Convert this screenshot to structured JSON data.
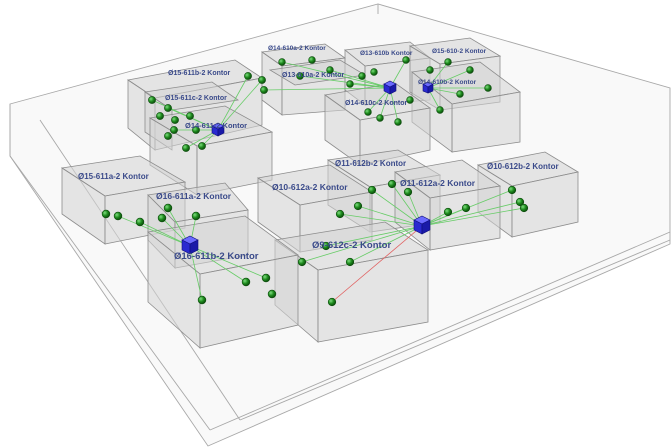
{
  "colors": {
    "room_fill": "#d3d3d3",
    "room_edge": "#8c8c8c",
    "floor_edge": "#a8a8a8",
    "label": "#3a4a8a",
    "sensor_node": "#1e8c1e",
    "gateway": "#2222cc",
    "link_good": "#66cc66",
    "link_weak": "#e06060"
  },
  "icons": {
    "sensor": "green-sphere-icon",
    "gateway": "blue-cube-icon"
  },
  "rooms": [
    {
      "id": "r1",
      "label": "Ø15-611b-2 Kontor"
    },
    {
      "id": "r2",
      "label": "Ø14-610a-2 Kontor"
    },
    {
      "id": "r3",
      "label": "Ø13-610b Kontor"
    },
    {
      "id": "r4",
      "label": "Ø15-610-2 Kontor"
    },
    {
      "id": "r5",
      "label": "Ø15-611c-2 Kontor"
    },
    {
      "id": "r6",
      "label": "Ø13-610a-2 Kontor"
    },
    {
      "id": "r7",
      "label": "Ø14-610b-2 Kontor"
    },
    {
      "id": "r8",
      "label": "Ø14-610c-2 Kontor"
    },
    {
      "id": "r9",
      "label": "Ø14-611-2 Kontor"
    },
    {
      "id": "r10",
      "label": "Ø11-612b-2 Kontor"
    },
    {
      "id": "r11",
      "label": "Ø10-612b-2 Kontor"
    },
    {
      "id": "r12",
      "label": "Ø15-611a-2 Kontor"
    },
    {
      "id": "r13",
      "label": "Ø10-612a-2 Kontor"
    },
    {
      "id": "r14",
      "label": "Ø11-612a-2 Kontor"
    },
    {
      "id": "r15",
      "label": "Ø16-611a-2 Kontor"
    },
    {
      "id": "r16",
      "label": "Ø9-612c-2 Kontor"
    },
    {
      "id": "r17",
      "label": "Ø16-611b-2 Kontor"
    }
  ]
}
